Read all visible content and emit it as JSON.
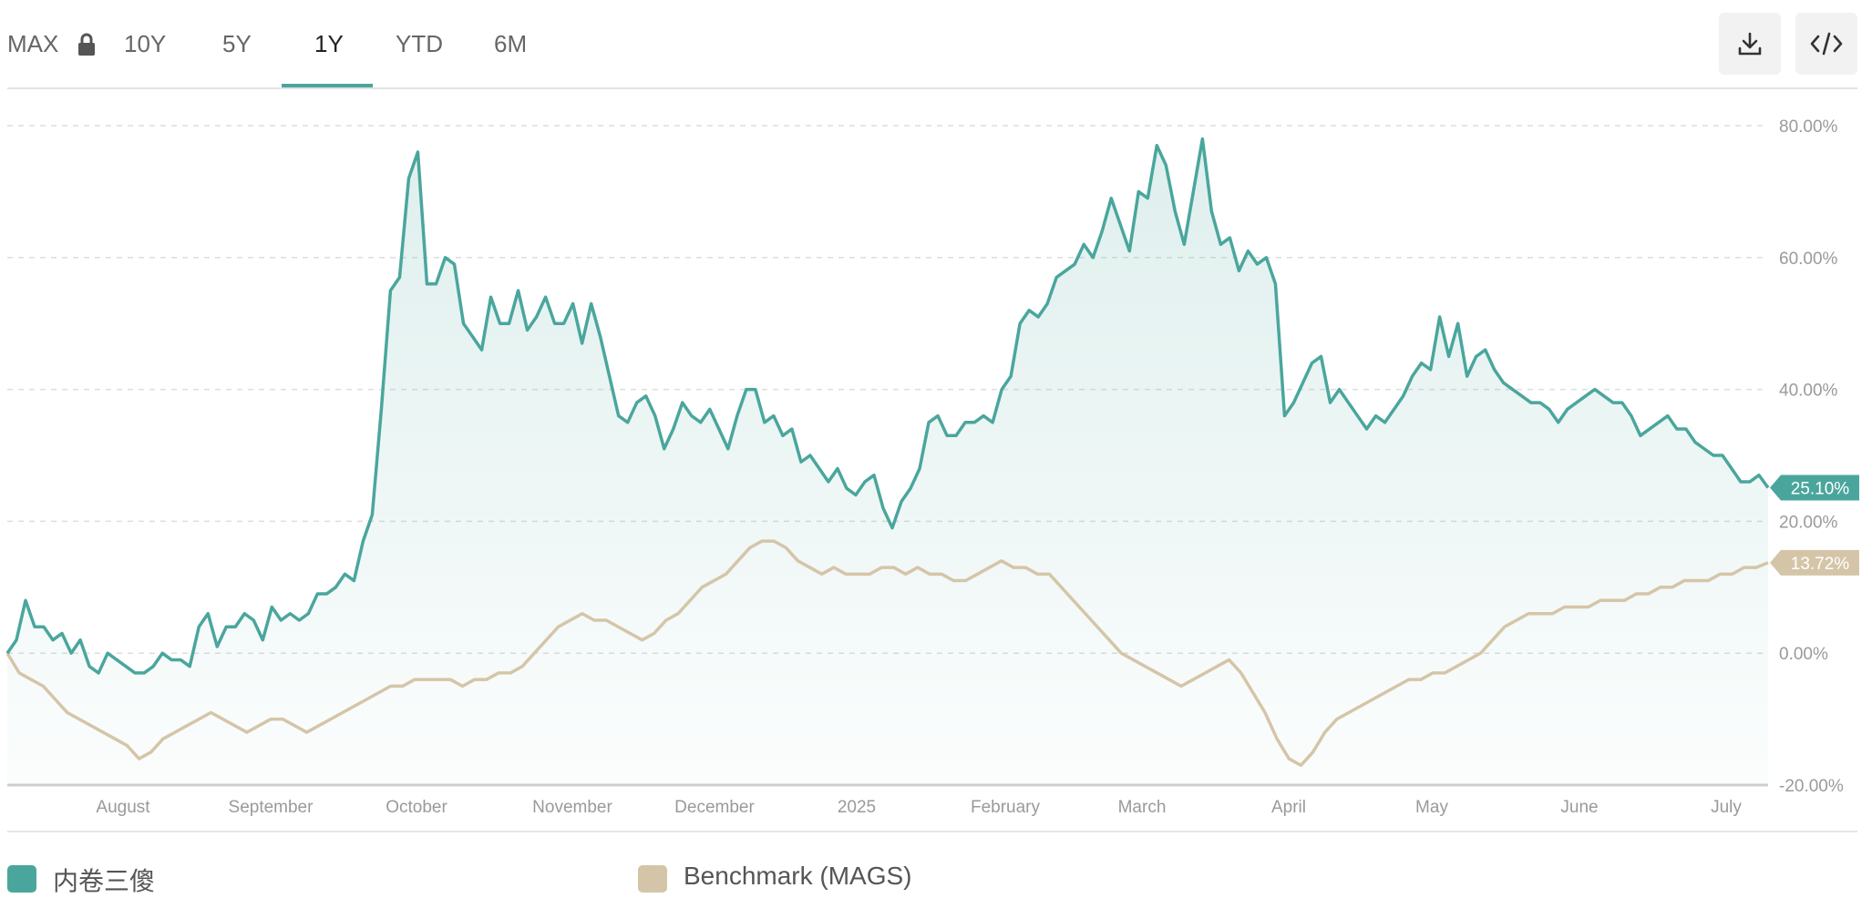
{
  "toolbar": {
    "ranges": [
      "MAX",
      "10Y",
      "5Y",
      "1Y",
      "YTD",
      "6M"
    ],
    "active_range": "1Y",
    "download_icon": "download-icon",
    "embed_icon": "code-icon"
  },
  "colors": {
    "series": "#4aa69d",
    "benchmark": "#d5c5a8",
    "grid": "#dedede",
    "axis_text": "#9a9a9a"
  },
  "chart_data": {
    "type": "line",
    "x_ticks": [
      "August",
      "September",
      "October",
      "November",
      "December",
      "2025",
      "February",
      "March",
      "April",
      "May",
      "June",
      "July"
    ],
    "y_ticks": [
      "80.00%",
      "60.00%",
      "40.00%",
      "20.00%",
      "0.00%",
      "-20.00%"
    ],
    "ylim": [
      -20,
      80
    ],
    "grid": true,
    "legend_position": "bottom",
    "series": [
      {
        "name": "内卷三傻",
        "last_label": "25.10%",
        "values": [
          0,
          2,
          8,
          4,
          4,
          2,
          3,
          0,
          2,
          -2,
          -3,
          0,
          -1,
          -2,
          -3,
          -3,
          -2,
          0,
          -1,
          -1,
          -2,
          4,
          6,
          1,
          4,
          4,
          6,
          5,
          2,
          7,
          5,
          6,
          5,
          6,
          9,
          9,
          10,
          12,
          11,
          17,
          21,
          37,
          55,
          57,
          72,
          76,
          56,
          56,
          60,
          59,
          50,
          48,
          46,
          54,
          50,
          50,
          55,
          49,
          51,
          54,
          50,
          50,
          53,
          47,
          53,
          48,
          42,
          36,
          35,
          38,
          39,
          36,
          31,
          34,
          38,
          36,
          35,
          37,
          34,
          31,
          36,
          40,
          40,
          35,
          36,
          33,
          34,
          29,
          30,
          28,
          26,
          28,
          25,
          24,
          26,
          27,
          22,
          19,
          23,
          25,
          28,
          35,
          36,
          33,
          33,
          35,
          35,
          36,
          35,
          40,
          42,
          50,
          52,
          51,
          53,
          57,
          58,
          59,
          62,
          60,
          64,
          69,
          65,
          61,
          70,
          69,
          77,
          74,
          67,
          62,
          70,
          78,
          67,
          62,
          63,
          58,
          61,
          59,
          60,
          56,
          36,
          38,
          41,
          44,
          45,
          38,
          40,
          38,
          36,
          34,
          36,
          35,
          37,
          39,
          42,
          44,
          43,
          51,
          45,
          50,
          42,
          45,
          46,
          43,
          41,
          40,
          39,
          38,
          38,
          37,
          35,
          37,
          38,
          39,
          40,
          39,
          38,
          38,
          36,
          33,
          34,
          35,
          36,
          34,
          34,
          32,
          31,
          30,
          30,
          28,
          26,
          26,
          27,
          25.1
        ]
      },
      {
        "name": "Benchmark (MAGS)",
        "last_label": "13.72%",
        "values": [
          0,
          -3,
          -4,
          -5,
          -7,
          -9,
          -10,
          -11,
          -12,
          -13,
          -14,
          -16,
          -15,
          -13,
          -12,
          -11,
          -10,
          -9,
          -10,
          -11,
          -12,
          -11,
          -10,
          -10,
          -11,
          -12,
          -11,
          -10,
          -9,
          -8,
          -7,
          -6,
          -5,
          -5,
          -4,
          -4,
          -4,
          -4,
          -5,
          -4,
          -4,
          -3,
          -3,
          -2,
          0,
          2,
          4,
          5,
          6,
          5,
          5,
          4,
          3,
          2,
          3,
          5,
          6,
          8,
          10,
          11,
          12,
          14,
          16,
          17,
          17,
          16,
          14,
          13,
          12,
          13,
          12,
          12,
          12,
          13,
          13,
          12,
          13,
          12,
          12,
          11,
          11,
          12,
          13,
          14,
          13,
          13,
          12,
          12,
          10,
          8,
          6,
          4,
          2,
          0,
          -1,
          -2,
          -3,
          -4,
          -5,
          -4,
          -3,
          -2,
          -1,
          -3,
          -6,
          -9,
          -13,
          -16,
          -17,
          -15,
          -12,
          -10,
          -9,
          -8,
          -7,
          -6,
          -5,
          -4,
          -4,
          -3,
          -3,
          -2,
          -1,
          0,
          2,
          4,
          5,
          6,
          6,
          6,
          7,
          7,
          7,
          8,
          8,
          8,
          9,
          9,
          10,
          10,
          11,
          11,
          11,
          12,
          12,
          13,
          13,
          13.72
        ]
      }
    ]
  }
}
